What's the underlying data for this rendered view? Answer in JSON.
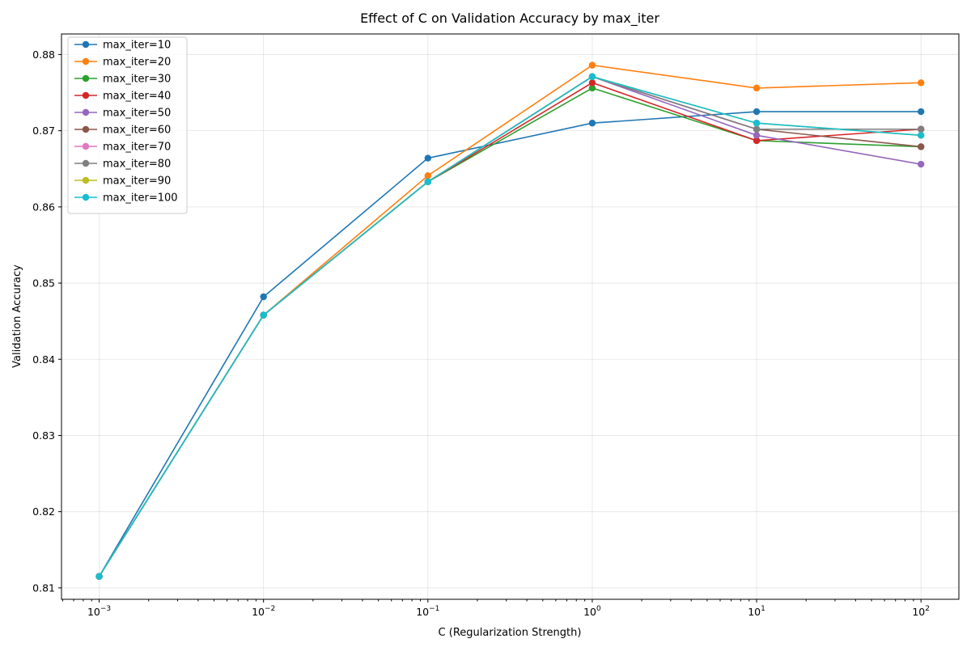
{
  "chart_data": {
    "type": "line",
    "title": "Effect of C on Validation Accuracy by max_iter",
    "xlabel": "C (Regularization Strength)",
    "ylabel": "Validation Accuracy",
    "xscale": "log",
    "xlim": [
      0.00059,
      170
    ],
    "ylim": [
      0.8085,
      0.8827
    ],
    "x": [
      0.001,
      0.01,
      0.1,
      1,
      10,
      100
    ],
    "x_tick_labels": [
      {
        "value": 0.001,
        "base": "10",
        "exp": "−3"
      },
      {
        "value": 0.01,
        "base": "10",
        "exp": "−2"
      },
      {
        "value": 0.1,
        "base": "10",
        "exp": "−1"
      },
      {
        "value": 1,
        "base": "10",
        "exp": "0"
      },
      {
        "value": 10,
        "base": "10",
        "exp": "1"
      },
      {
        "value": 100,
        "base": "10",
        "exp": "2"
      }
    ],
    "y_ticks": [
      0.81,
      0.82,
      0.83,
      0.84,
      0.85,
      0.86,
      0.87,
      0.88
    ],
    "y_tick_labels": [
      "0.81",
      "0.82",
      "0.83",
      "0.84",
      "0.85",
      "0.86",
      "0.87",
      "0.88"
    ],
    "grid": true,
    "legend_position": "top-left",
    "series": [
      {
        "name": "max_iter=10",
        "color": "#1f77b4",
        "values": [
          0.8115,
          0.8482,
          0.8664,
          0.871,
          0.8725,
          0.8725
        ]
      },
      {
        "name": "max_iter=20",
        "color": "#ff7f0e",
        "values": [
          0.8115,
          0.8458,
          0.8641,
          0.8786,
          0.8756,
          0.8763
        ]
      },
      {
        "name": "max_iter=30",
        "color": "#2ca02c",
        "values": [
          0.8115,
          0.8458,
          0.8633,
          0.8756,
          0.8687,
          0.8679
        ]
      },
      {
        "name": "max_iter=40",
        "color": "#d62728",
        "values": [
          0.8115,
          0.8458,
          0.8633,
          0.8763,
          0.8687,
          0.8702
        ]
      },
      {
        "name": "max_iter=50",
        "color": "#9467bd",
        "values": [
          0.8115,
          0.8458,
          0.8633,
          0.8771,
          0.8694,
          0.8656
        ]
      },
      {
        "name": "max_iter=60",
        "color": "#8c564b",
        "values": [
          0.8115,
          0.8458,
          0.8633,
          0.8771,
          0.8702,
          0.8679
        ]
      },
      {
        "name": "max_iter=70",
        "color": "#e377c2",
        "values": [
          0.8115,
          0.8458,
          0.8633,
          0.8771,
          0.8702,
          0.8702
        ]
      },
      {
        "name": "max_iter=80",
        "color": "#7f7f7f",
        "values": [
          0.8115,
          0.8458,
          0.8633,
          0.8771,
          0.8702,
          0.8702
        ]
      },
      {
        "name": "max_iter=90",
        "color": "#bcbd22",
        "values": [
          0.8115,
          0.8458,
          0.8633,
          0.8771,
          0.871,
          0.8694
        ]
      },
      {
        "name": "max_iter=100",
        "color": "#17becf",
        "values": [
          0.8115,
          0.8458,
          0.8633,
          0.8771,
          0.871,
          0.8694
        ]
      }
    ]
  }
}
